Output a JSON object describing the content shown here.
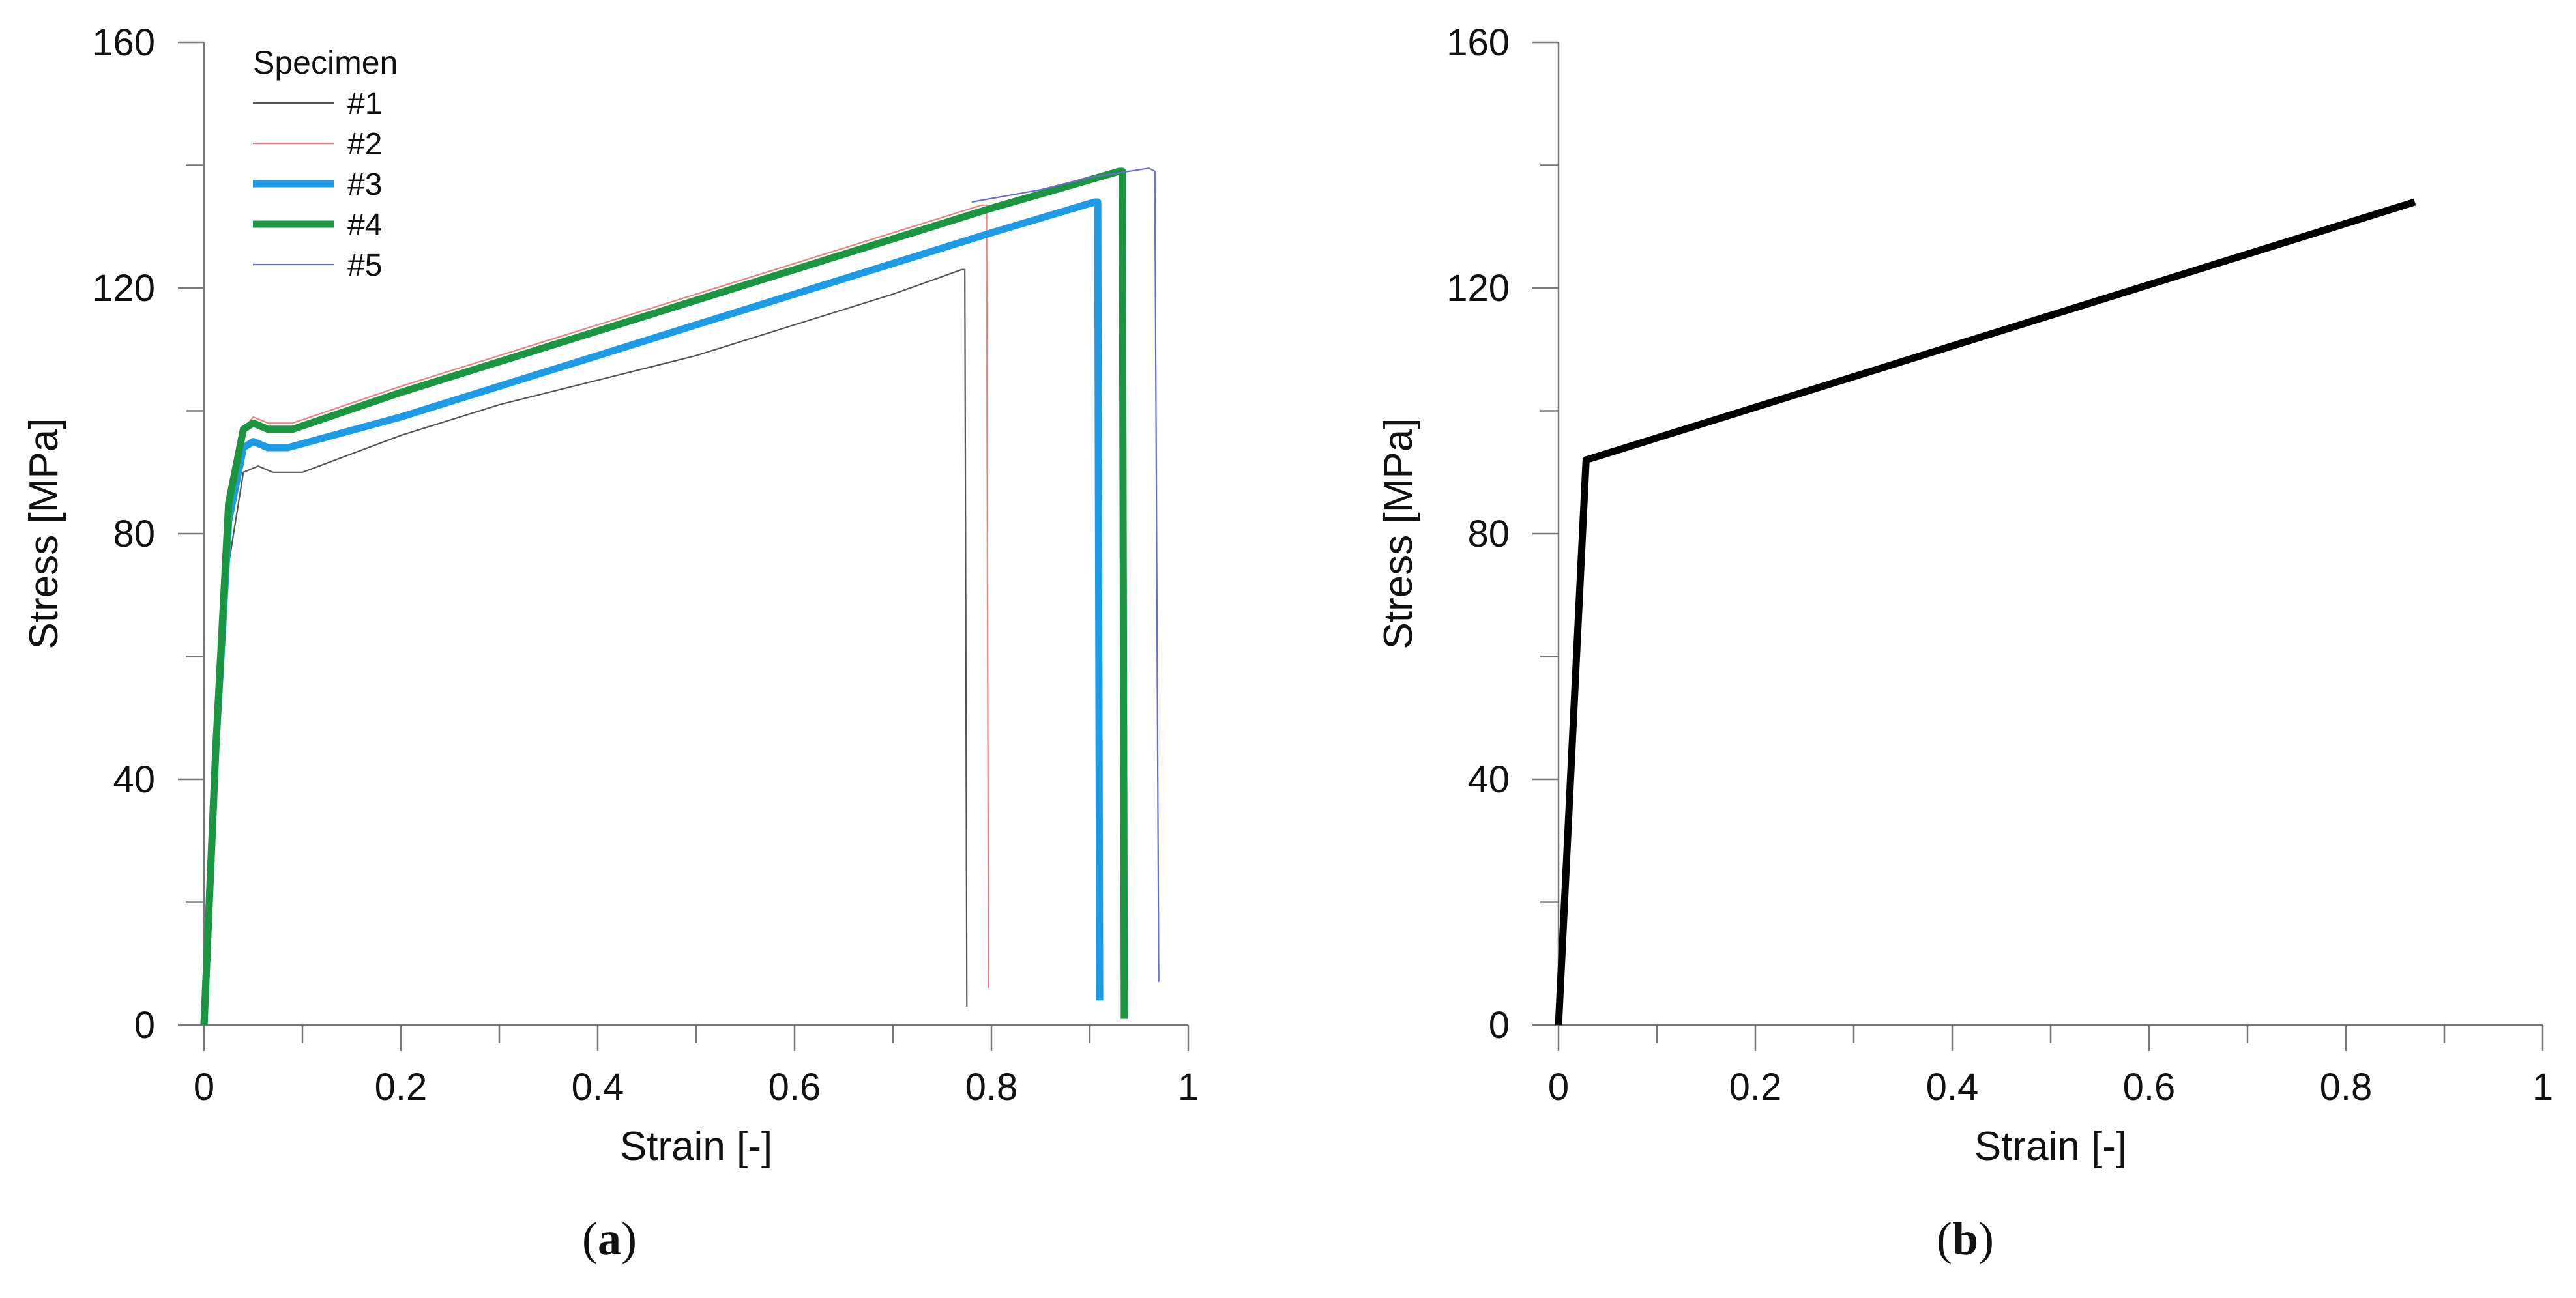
{
  "captions": {
    "a": {
      "open": "(",
      "letter": "a",
      "close": ")"
    },
    "b": {
      "open": "(",
      "letter": "b",
      "close": ")"
    }
  },
  "chart_data": [
    {
      "id": "a",
      "type": "line",
      "xlabel": "Strain  [-]",
      "ylabel": "Stress  [MPa]",
      "xlim": [
        0,
        1
      ],
      "ylim": [
        0,
        160
      ],
      "x_ticks": [
        0,
        0.2,
        0.4,
        0.6,
        0.8,
        1
      ],
      "x_tick_labels": [
        "0",
        "0.2",
        "0.4",
        "0.6",
        "0.8",
        "1"
      ],
      "y_ticks": [
        0,
        40,
        80,
        120,
        160
      ],
      "y_tick_labels": [
        "0",
        "40",
        "80",
        "120",
        "160"
      ],
      "grid": false,
      "legend": {
        "title": "Specimen",
        "position": "top-left"
      },
      "series": [
        {
          "name": "#1",
          "color": "#555555",
          "width": "thin",
          "points": [
            [
              0,
              0
            ],
            [
              0.012,
              40
            ],
            [
              0.025,
              75
            ],
            [
              0.04,
              90
            ],
            [
              0.055,
              91
            ],
            [
              0.07,
              90
            ],
            [
              0.1,
              90
            ],
            [
              0.2,
              96
            ],
            [
              0.3,
              101
            ],
            [
              0.4,
              105
            ],
            [
              0.5,
              109
            ],
            [
              0.6,
              114
            ],
            [
              0.7,
              119
            ],
            [
              0.77,
              123
            ],
            [
              0.773,
              123
            ],
            [
              0.775,
              3
            ]
          ]
        },
        {
          "name": "#2",
          "color": "#f08080",
          "width": "thin",
          "points": [
            [
              0,
              0
            ],
            [
              0.012,
              45
            ],
            [
              0.025,
              85
            ],
            [
              0.04,
              97
            ],
            [
              0.05,
              99
            ],
            [
              0.065,
              98
            ],
            [
              0.09,
              98
            ],
            [
              0.2,
              104
            ],
            [
              0.3,
              109
            ],
            [
              0.4,
              114
            ],
            [
              0.5,
              119
            ],
            [
              0.6,
              124
            ],
            [
              0.7,
              129
            ],
            [
              0.79,
              133.5
            ],
            [
              0.795,
              133.5
            ],
            [
              0.797,
              6
            ]
          ]
        },
        {
          "name": "#3",
          "color": "#1e9be6",
          "width": "thick",
          "points": [
            [
              0,
              0
            ],
            [
              0.012,
              45
            ],
            [
              0.025,
              82
            ],
            [
              0.04,
              94
            ],
            [
              0.05,
              95
            ],
            [
              0.065,
              94
            ],
            [
              0.085,
              94
            ],
            [
              0.2,
              99
            ],
            [
              0.3,
              104
            ],
            [
              0.4,
              109
            ],
            [
              0.5,
              114
            ],
            [
              0.6,
              119
            ],
            [
              0.7,
              124
            ],
            [
              0.8,
              129
            ],
            [
              0.905,
              134
            ],
            [
              0.908,
              134
            ],
            [
              0.91,
              4
            ]
          ]
        },
        {
          "name": "#4",
          "color": "#1a9641",
          "width": "thick",
          "points": [
            [
              0,
              0
            ],
            [
              0.012,
              45
            ],
            [
              0.025,
              85
            ],
            [
              0.04,
              97
            ],
            [
              0.05,
              98
            ],
            [
              0.065,
              97
            ],
            [
              0.09,
              97
            ],
            [
              0.2,
              103
            ],
            [
              0.3,
              108
            ],
            [
              0.4,
              113
            ],
            [
              0.5,
              118
            ],
            [
              0.6,
              123
            ],
            [
              0.7,
              128
            ],
            [
              0.8,
              133
            ],
            [
              0.93,
              139
            ],
            [
              0.933,
              139
            ],
            [
              0.935,
              1
            ]
          ]
        },
        {
          "name": "#5",
          "color": "#6b6bd6",
          "width": "thin",
          "points": [
            [
              0.78,
              134
            ],
            [
              0.85,
              136
            ],
            [
              0.9,
              138
            ],
            [
              0.96,
              139.5
            ],
            [
              0.966,
              139
            ],
            [
              0.97,
              7
            ]
          ]
        }
      ]
    },
    {
      "id": "b",
      "type": "line",
      "xlabel": "Strain  [-]",
      "ylabel": "Stress  [MPa]",
      "xlim": [
        0,
        1
      ],
      "ylim": [
        0,
        160
      ],
      "x_ticks": [
        0,
        0.2,
        0.4,
        0.6,
        0.8,
        1
      ],
      "x_tick_labels": [
        "0",
        "0.2",
        "0.4",
        "0.6",
        "0.8",
        "1"
      ],
      "y_ticks": [
        0,
        40,
        80,
        120,
        160
      ],
      "y_tick_labels": [
        "0",
        "40",
        "80",
        "120",
        "160"
      ],
      "grid": false,
      "series": [
        {
          "color": "#000000",
          "width": "thick",
          "points": [
            [
              0,
              0
            ],
            [
              0.028,
              92
            ],
            [
              0.87,
              134
            ]
          ]
        }
      ]
    }
  ]
}
